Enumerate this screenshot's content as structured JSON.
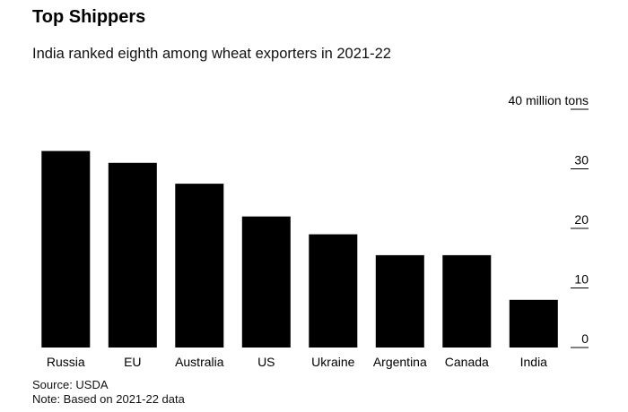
{
  "header": {
    "title": "Top Shippers",
    "subtitle": "India ranked eighth among wheat exporters in 2021-22"
  },
  "footer": {
    "source": "Source: USDA",
    "note": "Note: Based on 2021-22 data"
  },
  "chart_data": {
    "type": "bar",
    "title": "Top Shippers",
    "subtitle": "India ranked eighth among wheat exporters in 2021-22",
    "categories": [
      "Russia",
      "EU",
      "Australia",
      "US",
      "Ukraine",
      "Argentina",
      "Canada",
      "India"
    ],
    "values": [
      33,
      31,
      27.5,
      22,
      19,
      15.5,
      15.5,
      8
    ],
    "ylim": [
      0,
      40
    ],
    "yticks": [
      0,
      10,
      20,
      30,
      40
    ],
    "ytick_labels": [
      "0",
      "10",
      "20",
      "30",
      "40 million tons"
    ],
    "y_axis_side": "right",
    "grid": false,
    "bar_color": "#000000"
  }
}
